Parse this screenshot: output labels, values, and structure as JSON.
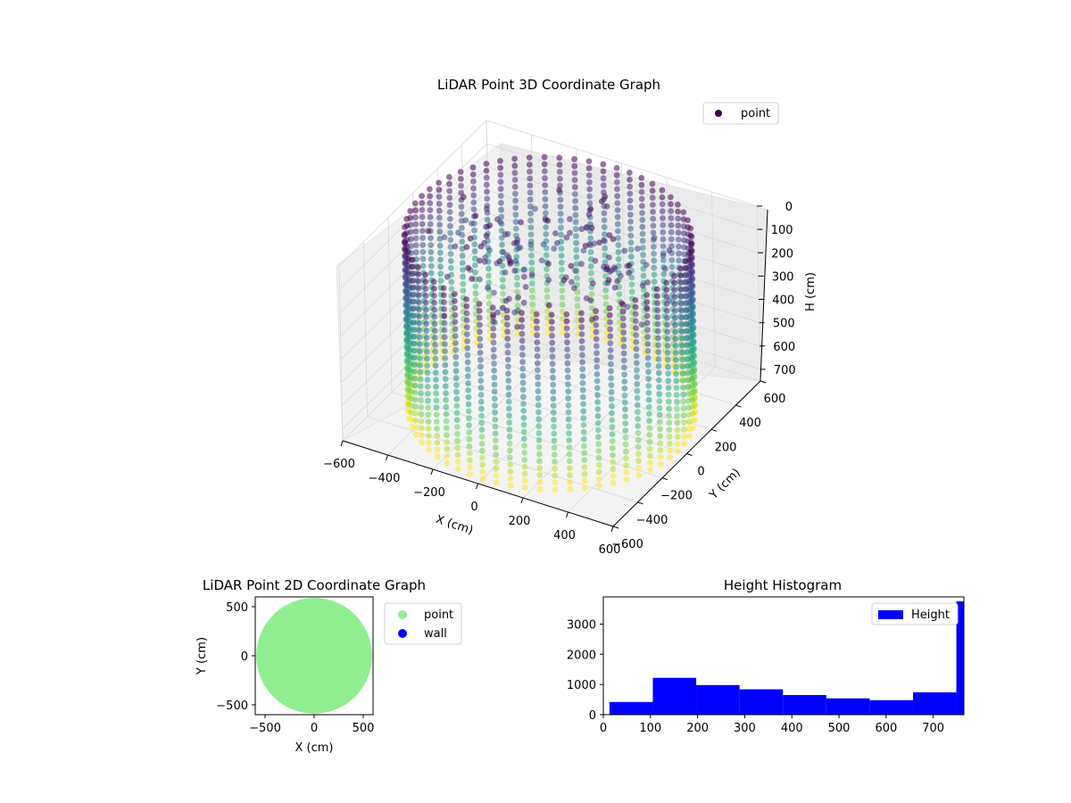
{
  "chart_data": [
    {
      "type": "scatter",
      "projection": "3d",
      "title": "LiDAR Point 3D Coordinate Graph",
      "xlabel": "X (cm)",
      "ylabel": "Y (cm)",
      "zlabel": "H (cm)",
      "xlim": [
        -600,
        600
      ],
      "ylim": [
        -600,
        600
      ],
      "zlim": [
        750,
        0
      ],
      "z_inverted": true,
      "xticks": [
        -600,
        -400,
        -200,
        0,
        200,
        400,
        600
      ],
      "yticks": [
        -600,
        -400,
        -200,
        0,
        200,
        400,
        600
      ],
      "zticks": [
        0,
        100,
        200,
        300,
        400,
        500,
        600,
        700
      ],
      "colormap": "viridis",
      "color_by": "height",
      "grid": true,
      "legend": {
        "position": "top-right",
        "entries": [
          {
            "name": "point",
            "color": "#440154"
          }
        ]
      },
      "series": [
        {
          "name": "point",
          "description_of_shape": "cylindrical wall of vertical point columns, radius about 560 cm, heights 0 to 760 cm, with a cluster of low-height points inside",
          "radius_cm": 560,
          "wall_columns": 60,
          "height_range": [
            0,
            760
          ]
        }
      ]
    },
    {
      "type": "scatter",
      "title": "LiDAR Point 2D Coordinate Graph",
      "xlabel": "X (cm)",
      "ylabel": "Y (cm)",
      "xlim": [
        -600,
        600
      ],
      "ylim": [
        -600,
        600
      ],
      "xticks": [
        -500,
        0,
        500
      ],
      "yticks": [
        -500,
        0,
        500
      ],
      "legend": {
        "position": "right-outside",
        "entries": [
          {
            "name": "point",
            "color": "#90ee90"
          },
          {
            "name": "wall",
            "color": "#0000ff"
          }
        ]
      },
      "series": [
        {
          "name": "point",
          "color": "#90ee90",
          "shape": "filled disk",
          "center": [
            0,
            0
          ],
          "radius_cm": 590
        },
        {
          "name": "wall",
          "color": "#0000ff",
          "points": []
        }
      ]
    },
    {
      "type": "bar",
      "subtype": "histogram",
      "title": "Height Histogram",
      "xlim": [
        0,
        765
      ],
      "ylim": [
        0,
        3900
      ],
      "xticks": [
        0,
        100,
        200,
        300,
        400,
        500,
        600,
        700
      ],
      "yticks": [
        0,
        1000,
        2000,
        3000
      ],
      "color": "#0000ff",
      "legend": {
        "position": "top-right",
        "entries": [
          {
            "name": "Height",
            "color": "#0000ff"
          }
        ]
      },
      "series": [
        {
          "name": "Height",
          "bins": [
            {
              "x0": 13,
              "x1": 105,
              "count": 420
            },
            {
              "x0": 105,
              "x1": 197,
              "count": 1220
            },
            {
              "x0": 197,
              "x1": 289,
              "count": 980
            },
            {
              "x0": 289,
              "x1": 381,
              "count": 840
            },
            {
              "x0": 381,
              "x1": 473,
              "count": 650
            },
            {
              "x0": 473,
              "x1": 565,
              "count": 540
            },
            {
              "x0": 565,
              "x1": 657,
              "count": 480
            },
            {
              "x0": 657,
              "x1": 749,
              "count": 740
            },
            {
              "x0": 749,
              "x1": 765,
              "count": 3750
            }
          ]
        }
      ]
    }
  ]
}
